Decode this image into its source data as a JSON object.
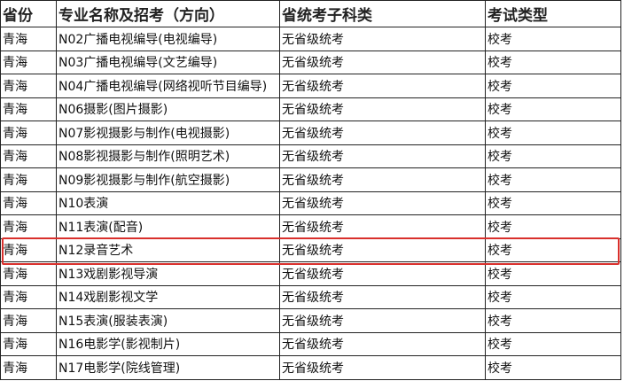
{
  "headers": [
    "省份",
    "专业名称及招考（方向）",
    "省统考子科类",
    "考试类型"
  ],
  "rows": [
    [
      "青海",
      "N02广播电视编导(电视编导)",
      "无省级统考",
      "校考"
    ],
    [
      "青海",
      "N03广播电视编导(文艺编导)",
      "无省级统考",
      "校考"
    ],
    [
      "青海",
      "N04广播电视编导(网络视听节目编导)",
      "无省级统考",
      "校考"
    ],
    [
      "青海",
      "N06摄影(图片摄影)",
      "无省级统考",
      "校考"
    ],
    [
      "青海",
      "N07影视摄影与制作(电视摄影)",
      "无省级统考",
      "校考"
    ],
    [
      "青海",
      "N08影视摄影与制作(照明艺术)",
      "无省级统考",
      "校考"
    ],
    [
      "青海",
      "N09影视摄影与制作(航空摄影)",
      "无省级统考",
      "校考"
    ],
    [
      "青海",
      "N10表演",
      "无省级统考",
      "校考"
    ],
    [
      "青海",
      "N11表演(配音)",
      "无省级统考",
      "校考"
    ],
    [
      "青海",
      "N12录音艺术",
      "无省级统考",
      "校考"
    ],
    [
      "青海",
      "N13戏剧影视导演",
      "无省级统考",
      "校考"
    ],
    [
      "青海",
      "N14戏剧影视文学",
      "无省级统考",
      "校考"
    ],
    [
      "青海",
      "N15表演(服装表演)",
      "无省级统考",
      "校考"
    ],
    [
      "青海",
      "N16电影学(影视制片)",
      "无省级统考",
      "校考"
    ],
    [
      "青海",
      "N17电影学(院线管理)",
      "无省级统考",
      "校考"
    ]
  ],
  "highlighted_row": "N12录音艺术",
  "highlight_color": "#d9302c"
}
